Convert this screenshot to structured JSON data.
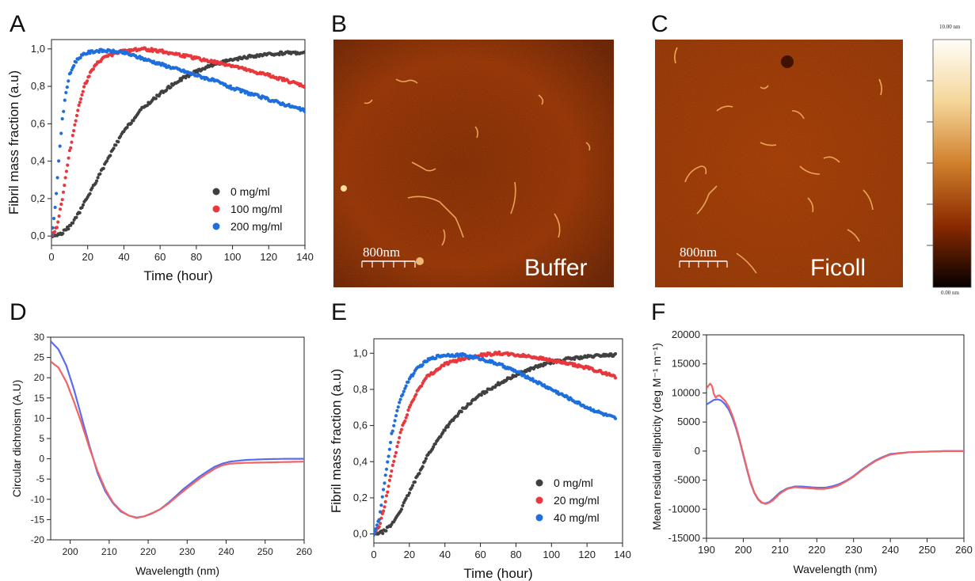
{
  "panels": {
    "A": "A",
    "B": "B",
    "C": "C",
    "D": "D",
    "E": "E",
    "F": "F"
  },
  "afm": {
    "buffer_label": "Buffer",
    "ficoll_label": "Ficoll",
    "scale_label": "800nm",
    "colorbar_top": "10.00 nm",
    "colorbar_bottom": "0.00 nm",
    "colors": {
      "dark": "#3a0a00",
      "mid": "#8a2a00",
      "bright": "#f0c060"
    }
  },
  "chart_data": [
    {
      "id": "A",
      "type": "scatter",
      "xlabel": "Time (hour)",
      "ylabel": "Fibril mass fraction (a.u)",
      "xlim": [
        0,
        140
      ],
      "ylim": [
        -0.05,
        1.05
      ],
      "xticks": [
        "0",
        "20",
        "40",
        "60",
        "80",
        "100",
        "120",
        "140"
      ],
      "yticks": [
        "0,0",
        "0,2",
        "0,4",
        "0,6",
        "0,8",
        "1,0"
      ],
      "legend_position": "bottom-right",
      "series": [
        {
          "name": "0 mg/ml",
          "color": "#404040",
          "x": [
            0,
            5,
            10,
            15,
            20,
            25,
            30,
            35,
            40,
            50,
            60,
            70,
            80,
            90,
            100,
            110,
            120,
            130,
            140
          ],
          "y": [
            0.0,
            0.01,
            0.05,
            0.12,
            0.21,
            0.3,
            0.39,
            0.48,
            0.56,
            0.68,
            0.76,
            0.83,
            0.88,
            0.92,
            0.94,
            0.96,
            0.97,
            0.98,
            0.98
          ]
        },
        {
          "name": "100 mg/ml",
          "color": "#e8383d",
          "x": [
            0,
            3,
            6,
            10,
            14,
            18,
            22,
            26,
            30,
            40,
            50,
            60,
            70,
            80,
            90,
            100,
            110,
            120,
            130,
            140
          ],
          "y": [
            0.0,
            0.05,
            0.2,
            0.45,
            0.65,
            0.8,
            0.88,
            0.93,
            0.96,
            0.99,
            1.0,
            0.99,
            0.97,
            0.95,
            0.93,
            0.91,
            0.88,
            0.86,
            0.83,
            0.8
          ]
        },
        {
          "name": "200 mg/ml",
          "color": "#1e6fdc",
          "x": [
            0,
            2,
            4,
            6,
            8,
            10,
            13,
            16,
            20,
            25,
            30,
            40,
            50,
            60,
            70,
            80,
            90,
            100,
            110,
            120,
            130,
            140
          ],
          "y": [
            0.0,
            0.15,
            0.4,
            0.62,
            0.77,
            0.86,
            0.93,
            0.96,
            0.98,
            0.99,
            0.99,
            0.98,
            0.95,
            0.92,
            0.89,
            0.86,
            0.83,
            0.79,
            0.76,
            0.73,
            0.7,
            0.67
          ]
        }
      ]
    },
    {
      "id": "D",
      "type": "line",
      "xlabel": "Wavelength (nm)",
      "ylabel": "Circular dichroism (A.U)",
      "xlim": [
        195,
        260
      ],
      "ylim": [
        -20,
        30
      ],
      "xticks": [
        "200",
        "210",
        "220",
        "230",
        "240",
        "250",
        "260"
      ],
      "yticks": [
        "-20",
        "-15",
        "-10",
        "-5",
        "0",
        "5",
        "10",
        "15",
        "20",
        "25",
        "30"
      ],
      "series": [
        {
          "color": "#5a6cf0",
          "x": [
            195,
            197,
            199,
            201,
            203,
            205,
            207,
            209,
            211,
            213,
            215,
            217,
            219,
            221,
            223,
            225,
            227,
            229,
            231,
            233,
            235,
            237,
            239,
            241,
            245,
            250,
            255,
            260
          ],
          "y": [
            29,
            27,
            23,
            17,
            10,
            3,
            -3.5,
            -8,
            -11,
            -13,
            -14,
            -14.5,
            -14.2,
            -13.5,
            -12.5,
            -11,
            -9.3,
            -7.5,
            -6,
            -4.5,
            -3.2,
            -2,
            -1.2,
            -0.7,
            -0.3,
            -0.1,
            0,
            0
          ]
        },
        {
          "color": "#f06464",
          "x": [
            195,
            197,
            199,
            201,
            203,
            205,
            207,
            209,
            211,
            213,
            215,
            217,
            219,
            221,
            223,
            225,
            227,
            229,
            231,
            233,
            235,
            237,
            239,
            241,
            245,
            250,
            255,
            260
          ],
          "y": [
            24,
            22.5,
            19,
            14,
            8.5,
            2.5,
            -3,
            -7.5,
            -10.8,
            -12.8,
            -14,
            -14.6,
            -14.2,
            -13.4,
            -12.5,
            -11.2,
            -9.6,
            -8,
            -6.5,
            -5,
            -3.7,
            -2.5,
            -1.6,
            -1.2,
            -1,
            -0.9,
            -0.8,
            -0.7
          ]
        }
      ]
    },
    {
      "id": "E",
      "type": "scatter",
      "xlabel": "Time (hour)",
      "ylabel": "Fibril mass fraction (a.u)",
      "xlim": [
        0,
        140
      ],
      "ylim": [
        -0.05,
        1.08
      ],
      "xticks": [
        "0",
        "20",
        "40",
        "60",
        "80",
        "100",
        "120",
        "140"
      ],
      "yticks": [
        "0,0",
        "0,2",
        "0,4",
        "0,6",
        "0,8",
        "1,0"
      ],
      "legend_position": "bottom-right",
      "series": [
        {
          "name": "0 mg/ml",
          "color": "#404040",
          "x": [
            0,
            5,
            10,
            15,
            20,
            25,
            30,
            40,
            50,
            60,
            70,
            80,
            90,
            100,
            110,
            120,
            130,
            136
          ],
          "y": [
            0.0,
            0.01,
            0.05,
            0.13,
            0.23,
            0.33,
            0.43,
            0.58,
            0.69,
            0.77,
            0.83,
            0.88,
            0.92,
            0.95,
            0.97,
            0.98,
            0.99,
            0.99
          ]
        },
        {
          "name": "20 mg/ml",
          "color": "#e8383d",
          "x": [
            0,
            3,
            6,
            10,
            15,
            20,
            25,
            30,
            40,
            50,
            60,
            70,
            80,
            90,
            100,
            110,
            120,
            130,
            136
          ],
          "y": [
            0.0,
            0.04,
            0.15,
            0.35,
            0.56,
            0.7,
            0.8,
            0.87,
            0.94,
            0.97,
            0.99,
            1.0,
            0.99,
            0.98,
            0.96,
            0.94,
            0.92,
            0.89,
            0.87
          ]
        },
        {
          "name": "40 mg/ml",
          "color": "#1e6fdc",
          "x": [
            0,
            3,
            6,
            10,
            15,
            20,
            25,
            30,
            35,
            40,
            50,
            60,
            70,
            80,
            90,
            100,
            110,
            120,
            130,
            136
          ],
          "y": [
            0.0,
            0.08,
            0.28,
            0.55,
            0.75,
            0.86,
            0.92,
            0.96,
            0.98,
            0.99,
            0.99,
            0.97,
            0.94,
            0.9,
            0.85,
            0.8,
            0.75,
            0.7,
            0.66,
            0.64
          ]
        }
      ]
    },
    {
      "id": "F",
      "type": "line",
      "xlabel": "Wavelength (nm)",
      "ylabel": "Mean residual ellipticity (deg M⁻¹ m⁻¹)",
      "xlim": [
        190,
        260
      ],
      "ylim": [
        -15000,
        20000
      ],
      "xticks": [
        "190",
        "200",
        "210",
        "220",
        "230",
        "240",
        "250",
        "260"
      ],
      "yticks": [
        "-15000",
        "-10000",
        "-5000",
        "0",
        "5000",
        "10000",
        "15000",
        "20000"
      ],
      "series": [
        {
          "color": "#5a6cf0",
          "x": [
            190,
            191,
            192,
            193,
            194,
            195,
            196,
            197,
            198,
            199,
            200,
            201,
            202,
            203,
            204,
            205,
            206,
            207,
            208,
            209,
            210,
            212,
            214,
            216,
            218,
            220,
            222,
            224,
            226,
            228,
            230,
            232,
            234,
            236,
            238,
            240,
            245,
            250,
            255,
            260
          ],
          "y": [
            8000,
            8400,
            8800,
            8900,
            8700,
            8100,
            7200,
            5800,
            4000,
            1800,
            -700,
            -3200,
            -5500,
            -7200,
            -8300,
            -8900,
            -9000,
            -8800,
            -8300,
            -7700,
            -7100,
            -6400,
            -6100,
            -6100,
            -6200,
            -6300,
            -6300,
            -6100,
            -5700,
            -5100,
            -4300,
            -3300,
            -2400,
            -1600,
            -1000,
            -500,
            -200,
            -100,
            0,
            0
          ]
        },
        {
          "color": "#f06464",
          "x": [
            190,
            191,
            191.5,
            192,
            192.5,
            193,
            193.5,
            194,
            195,
            196,
            197,
            198,
            199,
            200,
            201,
            202,
            203,
            204,
            205,
            206,
            207,
            208,
            209,
            210,
            212,
            214,
            216,
            218,
            220,
            222,
            224,
            226,
            228,
            230,
            232,
            234,
            236,
            238,
            240,
            245,
            250,
            255,
            260
          ],
          "y": [
            10800,
            11600,
            11200,
            9800,
            9200,
            9500,
            9600,
            9300,
            8700,
            7700,
            6200,
            4300,
            2000,
            -500,
            -3000,
            -5300,
            -7100,
            -8200,
            -8800,
            -9100,
            -8900,
            -8500,
            -7900,
            -7300,
            -6500,
            -6200,
            -6300,
            -6400,
            -6500,
            -6500,
            -6300,
            -5900,
            -5200,
            -4400,
            -3400,
            -2500,
            -1700,
            -1100,
            -600,
            -200,
            -100,
            0,
            0
          ]
        }
      ]
    }
  ]
}
